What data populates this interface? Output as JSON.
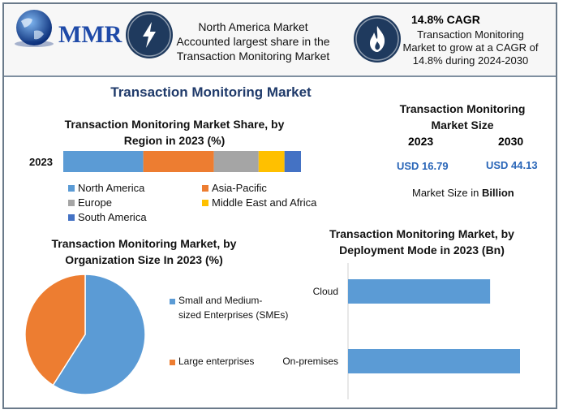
{
  "header": {
    "brand": "MMR",
    "box1": [
      "North America Market",
      "Accounted largest share in the",
      "Transaction Monitoring Market"
    ],
    "cagr_title": "14.8% CAGR",
    "box2": [
      "Transaction Monitoring",
      "Market to grow at a CAGR of",
      "14.8% during 2024-2030"
    ]
  },
  "main_title": "Transaction Monitoring Market",
  "market_size": {
    "title": [
      "Transaction Monitoring",
      "Market Size"
    ],
    "year1": "2023",
    "year2": "2030",
    "value1": "USD 16.79",
    "value2": "USD 44.13",
    "note_prefix": "Market Size in",
    "note_bold": "Billion"
  },
  "colors": {
    "blue": "#5b9bd5",
    "orange": "#ed7d31",
    "gray": "#a5a5a5",
    "yellow": "#ffc000",
    "darkblue": "#4472c4",
    "navy": "#1f3a5e"
  },
  "chart_data": [
    {
      "type": "bar",
      "orientation": "horizontal-stacked",
      "title": "Transaction Monitoring Market Share, by Region in 2023 (%)",
      "categories": [
        "2023"
      ],
      "series": [
        {
          "name": "North America",
          "values": [
            34
          ]
        },
        {
          "name": "Asia-Pacific",
          "values": [
            30
          ]
        },
        {
          "name": "Europe",
          "values": [
            19
          ]
        },
        {
          "name": "Middle East and Africa",
          "values": [
            11
          ]
        },
        {
          "name": "South America",
          "values": [
            7
          ]
        }
      ],
      "legend": "bottom"
    },
    {
      "type": "pie",
      "title": "Transaction Monitoring Market, by Organization Size In 2023 (%)",
      "labels": [
        "Small and Medium-sized Enterprises (SMEs)",
        "Large enterprises"
      ],
      "legend_lines": [
        [
          "Small and Medium-",
          "sized Enterprises (SMEs)"
        ],
        [
          "Large enterprises"
        ]
      ],
      "values": [
        59,
        41
      ],
      "legend": "right"
    },
    {
      "type": "bar",
      "orientation": "horizontal",
      "title": "Transaction Monitoring Market, by Deployment Mode in 2023 (Bn)",
      "categories": [
        "Cloud",
        "On-premises"
      ],
      "values": [
        7.6,
        9.2
      ]
    }
  ]
}
